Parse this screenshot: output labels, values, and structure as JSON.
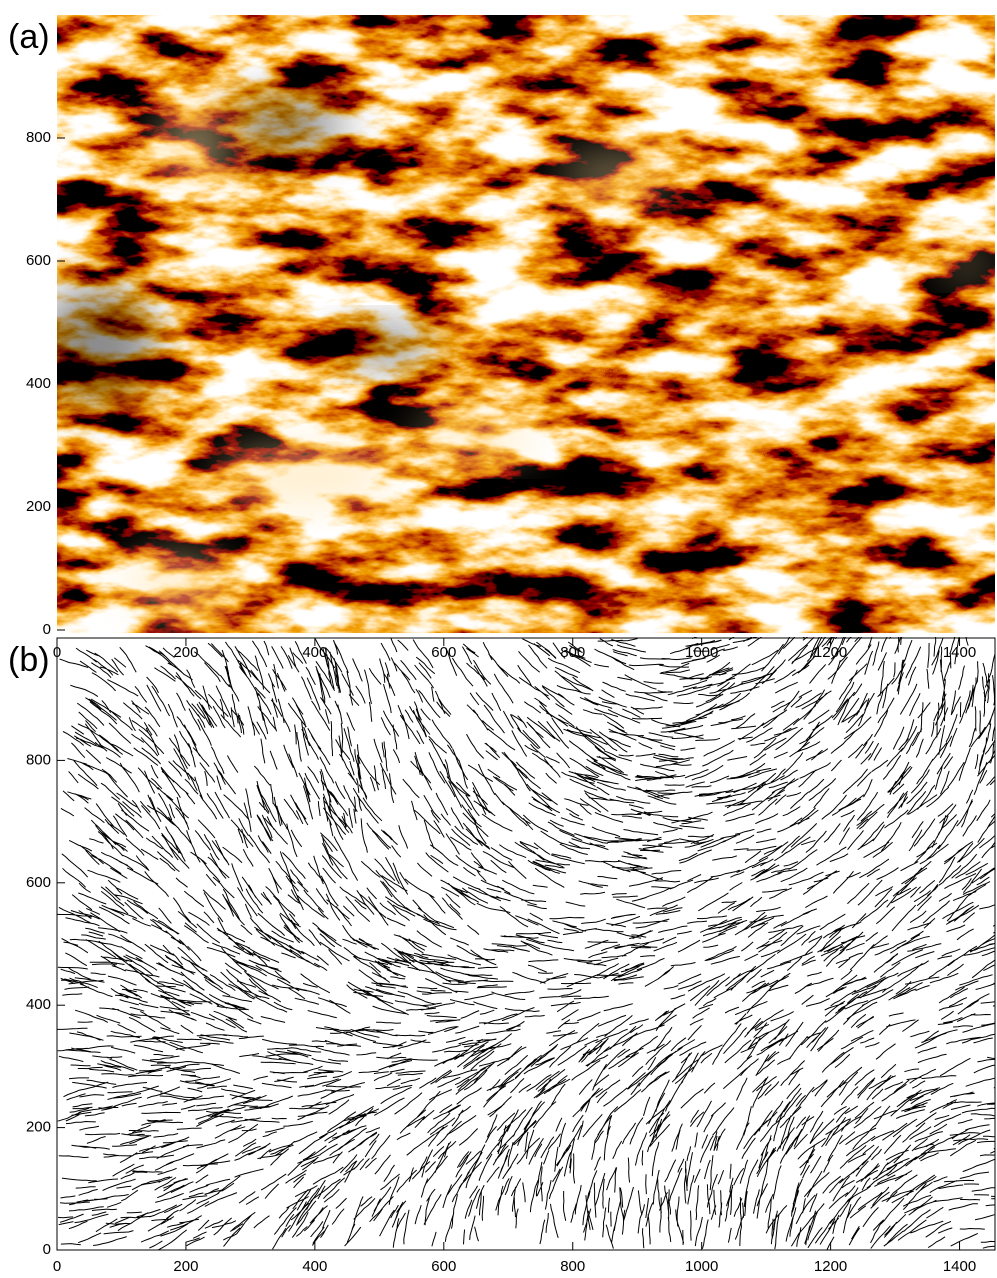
{
  "chart_data": [
    {
      "type": "image",
      "label": "(a)",
      "ylim": [
        0,
        1000
      ],
      "yticks": [
        0,
        200,
        400,
        600,
        800
      ],
      "colormap": [
        "#000000",
        "#5a0000",
        "#b02000",
        "#e05a00",
        "#ff9a20",
        "#ffe0a0",
        "#ffffff"
      ]
    },
    {
      "type": "fibrils",
      "label": "(b)",
      "xlim": [
        0,
        1455
      ],
      "ylim": [
        0,
        1000
      ],
      "xticks": [
        0,
        200,
        400,
        600,
        800,
        1000,
        1200,
        1400
      ],
      "yticks": [
        0,
        200,
        400,
        600,
        800
      ],
      "color": "#000000"
    }
  ]
}
